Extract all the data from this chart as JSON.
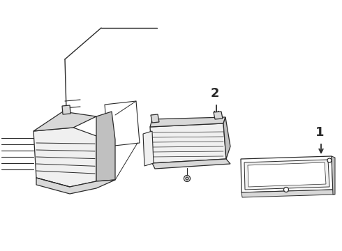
{
  "bg": "white",
  "lc": "#2a2a2a",
  "lc_light": "#555555",
  "lc_mid": "#888888",
  "label_1": "1",
  "label_2": "2",
  "label_fontsize": 13,
  "label_fontweight": "bold",
  "fc_white": "#ffffff",
  "fc_light": "#f0f0f0",
  "fc_mid": "#d8d8d8",
  "fc_dark": "#c0c0c0"
}
